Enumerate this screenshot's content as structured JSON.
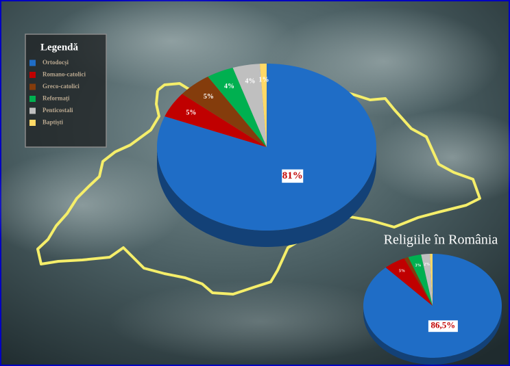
{
  "chart_data": [
    {
      "type": "pie",
      "legend_title": "Legendă",
      "legend": "top-left",
      "categories": [
        "Ortodocși",
        "Romano-catolici",
        "Greco-catolici",
        "Reformați",
        "Penticostali",
        "Baptiști"
      ],
      "values": [
        81,
        5,
        5,
        4,
        4,
        1
      ],
      "value_labels": [
        "81%",
        "5%",
        "5%",
        "4%",
        "4%",
        "1%"
      ],
      "colors": [
        "#1f6dc6",
        "#c00000",
        "#843c0c",
        "#00b050",
        "#bfbfbf",
        "#ffd966"
      ]
    },
    {
      "type": "pie",
      "title": "Religiile în România",
      "values": [
        86.5,
        5,
        1,
        3,
        2,
        0.6
      ],
      "value_labels": [
        "86,5%",
        "5%",
        null,
        "3%",
        "2%",
        null
      ],
      "colors": [
        "#1f6dc6",
        "#c00000",
        "#843c0c",
        "#00b050",
        "#bfbfbf",
        "#ffd966"
      ]
    }
  ]
}
